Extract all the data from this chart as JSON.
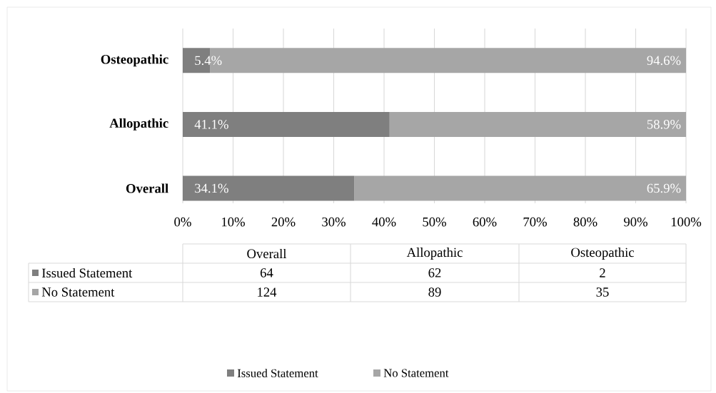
{
  "chart_data": [
    {
      "type": "bar",
      "orientation": "horizontal",
      "stacked": true,
      "categories": [
        "Osteopathic",
        "Allopathic",
        "Overall"
      ],
      "series": [
        {
          "name": "Issued Statement",
          "color": "#7f7f7f",
          "values": [
            5.4,
            41.1,
            34.1
          ],
          "value_labels": [
            "5.4%",
            "41.1%",
            "34.1%"
          ]
        },
        {
          "name": "No Statement",
          "color": "#a6a6a6",
          "values": [
            94.6,
            58.9,
            65.9
          ],
          "value_labels": [
            "94.6%",
            "58.9%",
            "65.9%"
          ]
        }
      ],
      "xlim": [
        0,
        100
      ],
      "xticks": [
        {
          "value": 0,
          "label": "0%"
        },
        {
          "value": 10,
          "label": "10%"
        },
        {
          "value": 20,
          "label": "20%"
        },
        {
          "value": 30,
          "label": "30%"
        },
        {
          "value": 40,
          "label": "40%"
        },
        {
          "value": 50,
          "label": "50%"
        },
        {
          "value": 60,
          "label": "60%"
        },
        {
          "value": 70,
          "label": "70%"
        },
        {
          "value": 80,
          "label": "80%"
        },
        {
          "value": 90,
          "label": "90%"
        },
        {
          "value": 100,
          "label": "100%"
        }
      ],
      "grid": "x",
      "legend": "bottom"
    },
    {
      "type": "other",
      "categories": [
        "Overall",
        "Allopathic",
        "Osteopathic"
      ],
      "series": [
        {
          "name": "Issued Statement",
          "color": "#7f7f7f",
          "values": [
            64,
            62,
            2
          ],
          "value_labels": [
            "64",
            "62",
            "2"
          ]
        },
        {
          "name": "No Statement",
          "color": "#a6a6a6",
          "values": [
            124,
            89,
            35
          ],
          "value_labels": [
            "124",
            "89",
            "35"
          ]
        }
      ]
    }
  ]
}
